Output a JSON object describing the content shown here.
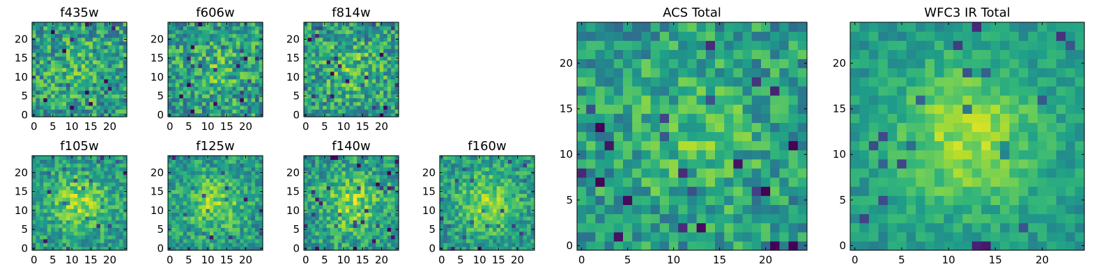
{
  "chart_data": [
    {
      "type": "heatmap",
      "title": "f435w",
      "size": 25,
      "xticks": [
        0,
        5,
        10,
        15,
        20
      ],
      "yticks": [
        0,
        5,
        10,
        15,
        20
      ],
      "xlim": [
        0,
        24
      ],
      "ylim": [
        0,
        24
      ],
      "peak": 0.25,
      "noise": 0.55,
      "seed": 11,
      "colormap": "viridis"
    },
    {
      "type": "heatmap",
      "title": "f606w",
      "size": 25,
      "xticks": [
        0,
        5,
        10,
        15,
        20
      ],
      "yticks": [
        0,
        5,
        10,
        15,
        20
      ],
      "xlim": [
        0,
        24
      ],
      "ylim": [
        0,
        24
      ],
      "peak": 0.3,
      "noise": 0.55,
      "seed": 23,
      "colormap": "viridis"
    },
    {
      "type": "heatmap",
      "title": "f814w",
      "size": 25,
      "xticks": [
        0,
        5,
        10,
        15,
        20
      ],
      "yticks": [
        0,
        5,
        10,
        15,
        20
      ],
      "xlim": [
        0,
        24
      ],
      "ylim": [
        0,
        24
      ],
      "peak": 0.4,
      "noise": 0.55,
      "seed": 37,
      "colormap": "viridis"
    },
    {
      "type": "heatmap",
      "title": "f105w",
      "size": 25,
      "xticks": [
        0,
        5,
        10,
        15,
        20
      ],
      "yticks": [
        0,
        5,
        10,
        15,
        20
      ],
      "xlim": [
        0,
        24
      ],
      "ylim": [
        0,
        24
      ],
      "peak": 0.8,
      "noise": 0.45,
      "seed": 41,
      "colormap": "viridis"
    },
    {
      "type": "heatmap",
      "title": "f125w",
      "size": 25,
      "xticks": [
        0,
        5,
        10,
        15,
        20
      ],
      "yticks": [
        0,
        5,
        10,
        15,
        20
      ],
      "xlim": [
        0,
        24
      ],
      "ylim": [
        0,
        24
      ],
      "peak": 0.7,
      "noise": 0.45,
      "seed": 53,
      "colormap": "viridis"
    },
    {
      "type": "heatmap",
      "title": "f140w",
      "size": 25,
      "xticks": [
        0,
        5,
        10,
        15,
        20
      ],
      "yticks": [
        0,
        5,
        10,
        15,
        20
      ],
      "xlim": [
        0,
        24
      ],
      "ylim": [
        0,
        24
      ],
      "peak": 0.75,
      "noise": 0.5,
      "seed": 67,
      "colormap": "viridis"
    },
    {
      "type": "heatmap",
      "title": "f160w",
      "size": 25,
      "xticks": [
        0,
        5,
        10,
        15,
        20
      ],
      "yticks": [
        0,
        5,
        10,
        15,
        20
      ],
      "xlim": [
        0,
        24
      ],
      "ylim": [
        0,
        24
      ],
      "peak": 0.8,
      "noise": 0.45,
      "seed": 79,
      "colormap": "viridis"
    },
    {
      "type": "heatmap",
      "title": "ACS Total",
      "size": 25,
      "xticks": [
        0,
        5,
        10,
        15,
        20
      ],
      "yticks": [
        0,
        5,
        10,
        15,
        20
      ],
      "xlim": [
        0,
        24
      ],
      "ylim": [
        0,
        24
      ],
      "peak": 0.35,
      "noise": 0.45,
      "seed": 83,
      "colormap": "viridis"
    },
    {
      "type": "heatmap",
      "title": "WFC3 IR Total",
      "size": 25,
      "xticks": [
        0,
        5,
        10,
        15,
        20
      ],
      "yticks": [
        0,
        5,
        10,
        15,
        20
      ],
      "xlim": [
        0,
        24
      ],
      "ylim": [
        0,
        24
      ],
      "peak": 0.95,
      "noise": 0.3,
      "seed": 97,
      "colormap": "viridis"
    }
  ]
}
